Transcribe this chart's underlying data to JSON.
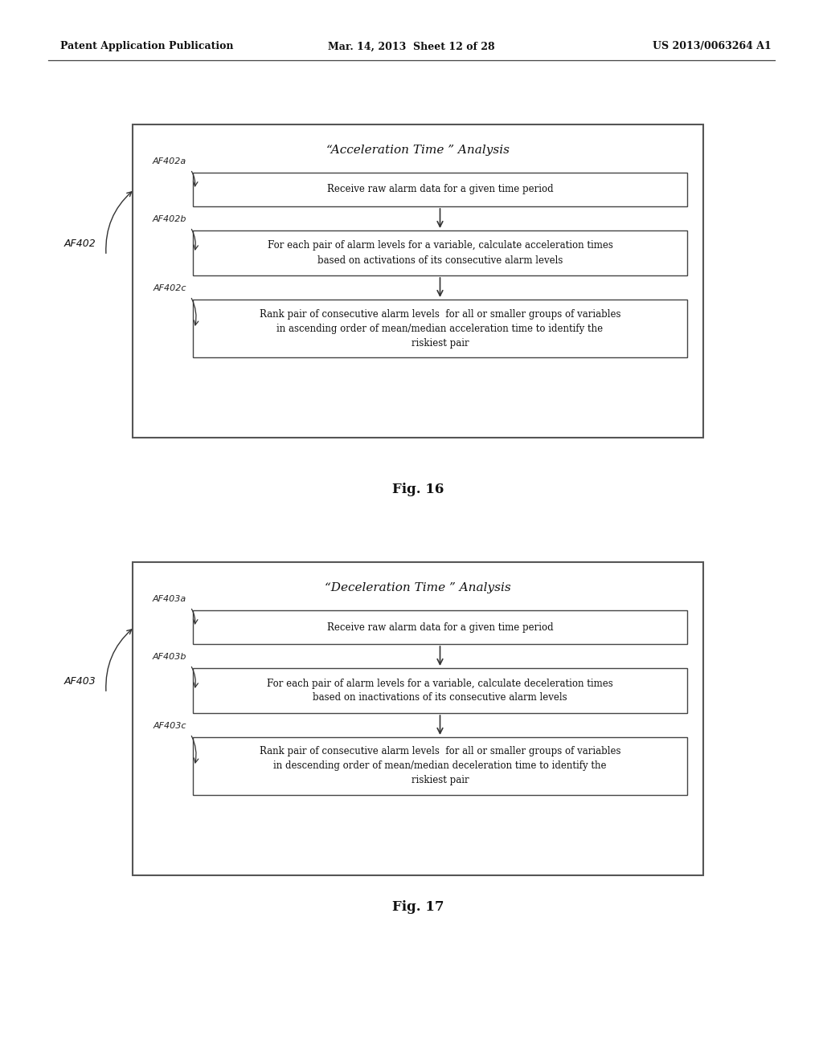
{
  "bg_color": "#ffffff",
  "header_left": "Patent Application Publication",
  "header_mid": "Mar. 14, 2013  Sheet 12 of 28",
  "header_right": "US 2013/0063264 A1",
  "fig16_title": "“Acceleration Time ” Analysis",
  "fig16_label": "Fig. 16",
  "fig16_outer_label": "AF402",
  "fig16_steps": [
    {
      "label": "AF402a",
      "text": "Receive raw alarm data for a given time period"
    },
    {
      "label": "AF402b",
      "text": "For each pair of alarm levels for a variable, calculate acceleration times\nbased on activations of its consecutive alarm levels"
    },
    {
      "label": "AF402c",
      "text": "Rank pair of consecutive alarm levels  for all or smaller groups of variables\nin ascending order of mean/median acceleration time to identify the\nriskiest pair"
    }
  ],
  "fig17_title": "“Deceleration Time ” Analysis",
  "fig17_label": "Fig. 17",
  "fig17_outer_label": "AF403",
  "fig17_steps": [
    {
      "label": "AF403a",
      "text": "Receive raw alarm data for a given time period"
    },
    {
      "label": "AF403b",
      "text": "For each pair of alarm levels for a variable, calculate deceleration times\nbased on inactivations of its consecutive alarm levels"
    },
    {
      "label": "AF403c",
      "text": "Rank pair of consecutive alarm levels  for all or smaller groups of variables\nin descending order of mean/median deceleration time to identify the\nriskiest pair"
    }
  ]
}
